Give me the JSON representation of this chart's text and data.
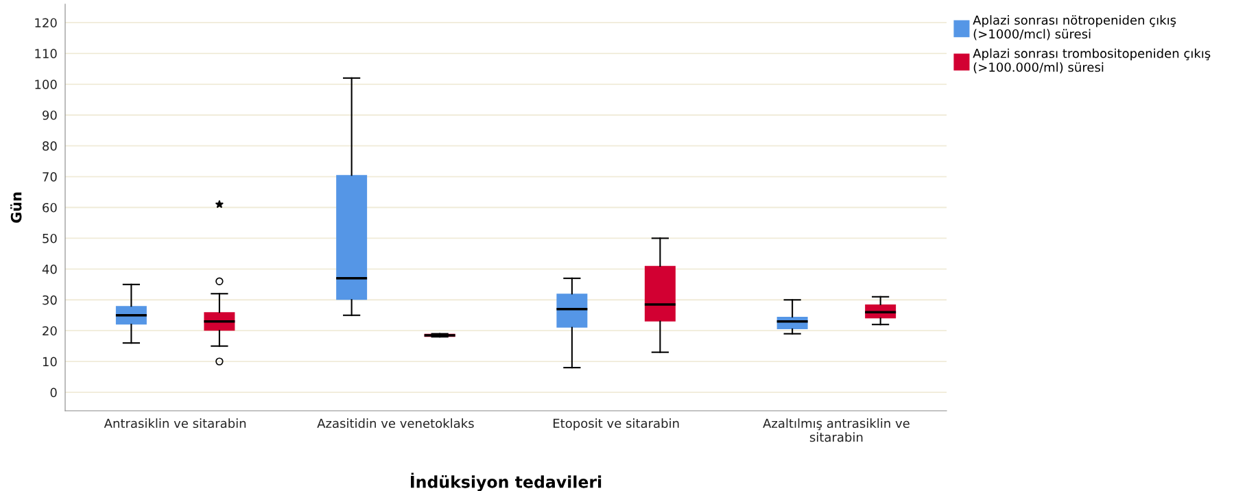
{
  "chart_data": {
    "type": "box",
    "xlabel": "İndüksiyon tedavileri",
    "ylabel": "Gün",
    "categories": [
      "Antrasiklin ve sitarabin",
      "Azasitidin ve venetoklaks",
      "Etoposit ve sitarabin",
      "Azaltılmış antrasiklin ve\nsitarabin"
    ],
    "series": [
      {
        "name": "Aplazi sonrası nötropeniden çıkış\n(>1000/mcl) süresi",
        "color": "#5596e6",
        "boxes": [
          {
            "low": 16,
            "q1": 22,
            "median": 25,
            "q3": 28,
            "high": 35
          },
          {
            "low": 25,
            "q1": 30,
            "median": 37,
            "q3": 70.5,
            "high": 102
          },
          {
            "low": 8,
            "q1": 21,
            "median": 27,
            "q3": 32,
            "high": 37
          },
          {
            "low": 19,
            "q1": 20.5,
            "median": 23,
            "q3": 24.5,
            "high": 30
          }
        ]
      },
      {
        "name": "Aplazi sonrası trombositopeniden çıkış\n(>100.000/ml) süresi",
        "color": "#d20032",
        "boxes": [
          {
            "low": 15,
            "q1": 20,
            "median": 23,
            "q3": 26,
            "high": 32,
            "outliers": [
              10,
              36,
              61
            ]
          },
          {
            "low": 18,
            "q1": 18,
            "median": 18.5,
            "q3": 19,
            "high": 19
          },
          {
            "low": 13,
            "q1": 23,
            "median": 28.5,
            "q3": 41,
            "high": 50
          },
          {
            "low": 22,
            "q1": 24,
            "median": 26,
            "q3": 28.5,
            "high": 31
          }
        ]
      }
    ],
    "ylim": [
      -6,
      126
    ],
    "yticks": [
      0,
      10,
      20,
      30,
      40,
      50,
      60,
      70,
      80,
      90,
      100,
      110,
      120
    ],
    "grid": "y",
    "legend": "top right"
  }
}
